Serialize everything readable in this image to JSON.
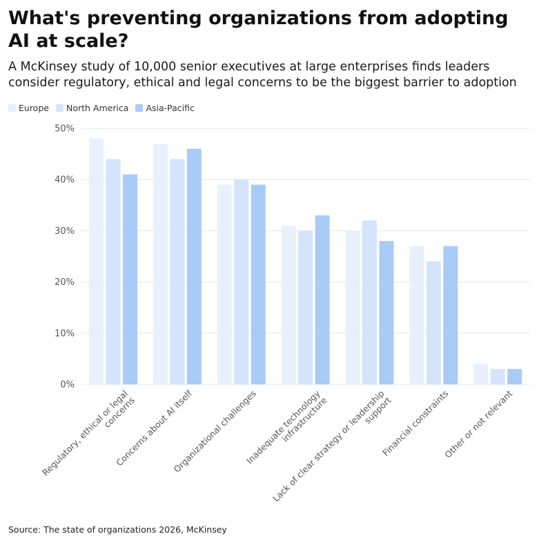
{
  "title": "What's preventing organizations from adopting AI at scale?",
  "subtitle": "A McKinsey study of 10,000 senior executives at large enterprises finds leaders consider regulatory, ethical and legal concerns to be the biggest barrier to adoption",
  "source": "Source: The state of organizations 2026, McKinsey",
  "colors": {
    "Europe": "#e8f0fd",
    "North America": "#d3e4fc",
    "Asia-Pacific": "#a9cbf7",
    "grid": "#e6e6e6",
    "axis_text": "#555555"
  },
  "chart_data": {
    "type": "bar",
    "categories": [
      "Regulatory, ethical or legal concerns",
      "Concerns about AI itself",
      "Organizational challenges",
      "Inadequate technology infrastructure",
      "Lack of clear strategy or leadership support",
      "Financial constraints",
      "Other or not relevant"
    ],
    "category_lines": [
      [
        "Regulatory, ethical or legal",
        "concerns"
      ],
      [
        "Concerns about AI itself"
      ],
      [
        "Organizational challenges"
      ],
      [
        "Inadequate technology",
        "infrastructure"
      ],
      [
        "Lack of clear strategy or leadership",
        "support"
      ],
      [
        "Financial constraints"
      ],
      [
        "Other or not relevant"
      ]
    ],
    "series": [
      {
        "name": "Europe",
        "values": [
          48,
          47,
          39,
          31,
          30,
          27,
          4
        ]
      },
      {
        "name": "North America",
        "values": [
          44,
          44,
          40,
          30,
          32,
          24,
          3
        ]
      },
      {
        "name": "Asia-Pacific",
        "values": [
          41,
          46,
          39,
          33,
          28,
          27,
          3
        ]
      }
    ],
    "ylim": [
      0,
      50
    ],
    "yticks": [
      0,
      10,
      20,
      30,
      40,
      50
    ],
    "ytick_labels": [
      "0%",
      "10%",
      "20%",
      "30%",
      "40%",
      "50%"
    ],
    "grid": true,
    "legend_position": "top-left"
  }
}
